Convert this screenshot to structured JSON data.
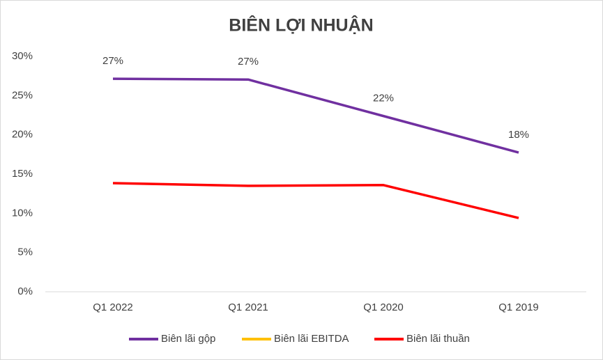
{
  "chart_data": {
    "type": "line",
    "title": "BIÊN LỢI NHUẬN",
    "categories": [
      "Q1 2022",
      "Q1 2021",
      "Q1 2020",
      "Q1 2019"
    ],
    "series": [
      {
        "name": "Biên lãi gộp",
        "color": "#7030a0",
        "values": [
          27.15,
          27.05,
          22.4,
          17.75
        ],
        "value_labels": [
          "27%",
          "27%",
          "22%",
          "18%"
        ]
      },
      {
        "name": "Biên lãi EBITDA",
        "color": "#ffc000",
        "values": [
          null,
          null,
          null,
          null
        ]
      },
      {
        "name": "Biên lãi thuần",
        "color": "#ff0000",
        "values": [
          13.85,
          13.5,
          13.6,
          9.4
        ]
      }
    ],
    "ylim": [
      0,
      30
    ],
    "yticks": [
      {
        "value": 0,
        "label": "0%"
      },
      {
        "value": 5,
        "label": "5%"
      },
      {
        "value": 10,
        "label": "10%"
      },
      {
        "value": 15,
        "label": "15%"
      },
      {
        "value": 20,
        "label": "20%"
      },
      {
        "value": 25,
        "label": "25%"
      },
      {
        "value": 30,
        "label": "30%"
      }
    ],
    "grid": false,
    "legend": "bottom"
  }
}
